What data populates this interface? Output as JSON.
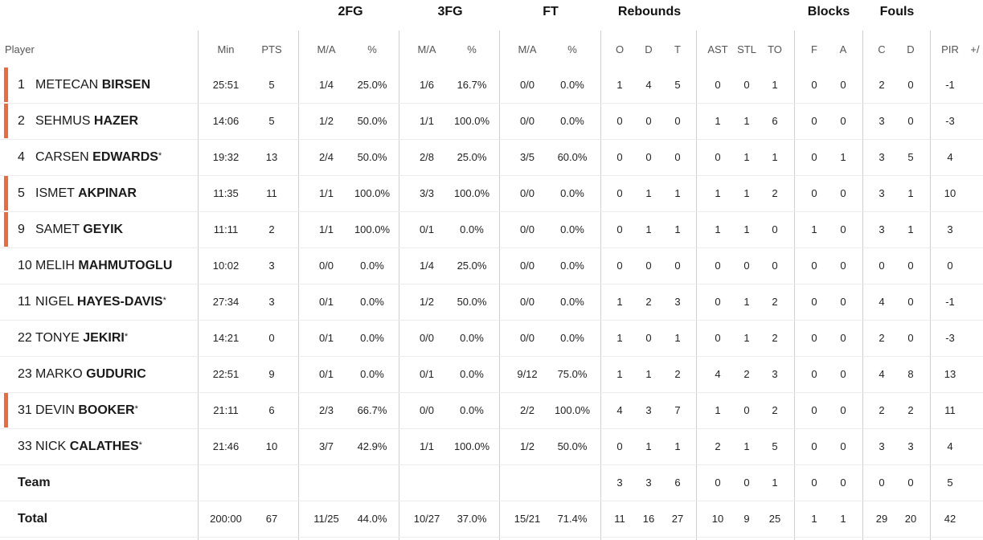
{
  "groups": {
    "fg2": "2FG",
    "fg3": "3FG",
    "ft": "FT",
    "rebounds": "Rebounds",
    "blocks": "Blocks",
    "fouls": "Fouls"
  },
  "headers": {
    "player": "Player",
    "min": "Min",
    "pts": "PTS",
    "fg2_ma": "M/A",
    "fg2_pct": "%",
    "fg3_ma": "M/A",
    "fg3_pct": "%",
    "ft_ma": "M/A",
    "ft_pct": "%",
    "reb_o": "O",
    "reb_d": "D",
    "reb_t": "T",
    "ast": "AST",
    "stl": "STL",
    "to": "TO",
    "blk_f": "F",
    "blk_a": "A",
    "foul_c": "C",
    "foul_d": "D",
    "pir": "PIR",
    "pm": "+/"
  },
  "colors": {
    "starter_accent": "#ee6a3a"
  },
  "players": [
    {
      "num": "1",
      "first": "METECAN",
      "last": "BIRSEN",
      "star": "",
      "starter": true,
      "min": "25:51",
      "pts": "5",
      "fg2": "1/4",
      "fg2p": "25.0%",
      "fg3": "1/6",
      "fg3p": "16.7%",
      "ft": "0/0",
      "ftp": "0.0%",
      "o": "1",
      "d": "4",
      "t": "5",
      "ast": "0",
      "stl": "0",
      "to": "1",
      "bf": "0",
      "ba": "0",
      "fc": "2",
      "fd": "0",
      "pir": "-1"
    },
    {
      "num": "2",
      "first": "SEHMUS",
      "last": "HAZER",
      "star": "",
      "starter": true,
      "min": "14:06",
      "pts": "5",
      "fg2": "1/2",
      "fg2p": "50.0%",
      "fg3": "1/1",
      "fg3p": "100.0%",
      "ft": "0/0",
      "ftp": "0.0%",
      "o": "0",
      "d": "0",
      "t": "0",
      "ast": "1",
      "stl": "1",
      "to": "6",
      "bf": "0",
      "ba": "0",
      "fc": "3",
      "fd": "0",
      "pir": "-3"
    },
    {
      "num": "4",
      "first": "CARSEN",
      "last": "EDWARDS",
      "star": "*",
      "starter": false,
      "min": "19:32",
      "pts": "13",
      "fg2": "2/4",
      "fg2p": "50.0%",
      "fg3": "2/8",
      "fg3p": "25.0%",
      "ft": "3/5",
      "ftp": "60.0%",
      "o": "0",
      "d": "0",
      "t": "0",
      "ast": "0",
      "stl": "1",
      "to": "1",
      "bf": "0",
      "ba": "1",
      "fc": "3",
      "fd": "5",
      "pir": "4"
    },
    {
      "num": "5",
      "first": "ISMET",
      "last": "AKPINAR",
      "star": "",
      "starter": true,
      "min": "11:35",
      "pts": "11",
      "fg2": "1/1",
      "fg2p": "100.0%",
      "fg3": "3/3",
      "fg3p": "100.0%",
      "ft": "0/0",
      "ftp": "0.0%",
      "o": "0",
      "d": "1",
      "t": "1",
      "ast": "1",
      "stl": "1",
      "to": "2",
      "bf": "0",
      "ba": "0",
      "fc": "3",
      "fd": "1",
      "pir": "10"
    },
    {
      "num": "9",
      "first": "SAMET",
      "last": "GEYIK",
      "star": "",
      "starter": true,
      "min": "11:11",
      "pts": "2",
      "fg2": "1/1",
      "fg2p": "100.0%",
      "fg3": "0/1",
      "fg3p": "0.0%",
      "ft": "0/0",
      "ftp": "0.0%",
      "o": "0",
      "d": "1",
      "t": "1",
      "ast": "1",
      "stl": "1",
      "to": "0",
      "bf": "1",
      "ba": "0",
      "fc": "3",
      "fd": "1",
      "pir": "3"
    },
    {
      "num": "10",
      "first": "MELIH",
      "last": "MAHMUTOGLU",
      "star": "",
      "starter": false,
      "min": "10:02",
      "pts": "3",
      "fg2": "0/0",
      "fg2p": "0.0%",
      "fg3": "1/4",
      "fg3p": "25.0%",
      "ft": "0/0",
      "ftp": "0.0%",
      "o": "0",
      "d": "0",
      "t": "0",
      "ast": "0",
      "stl": "0",
      "to": "0",
      "bf": "0",
      "ba": "0",
      "fc": "0",
      "fd": "0",
      "pir": "0"
    },
    {
      "num": "11",
      "first": "NIGEL",
      "last": "HAYES-DAVIS",
      "star": "*",
      "starter": false,
      "min": "27:34",
      "pts": "3",
      "fg2": "0/1",
      "fg2p": "0.0%",
      "fg3": "1/2",
      "fg3p": "50.0%",
      "ft": "0/0",
      "ftp": "0.0%",
      "o": "1",
      "d": "2",
      "t": "3",
      "ast": "0",
      "stl": "1",
      "to": "2",
      "bf": "0",
      "ba": "0",
      "fc": "4",
      "fd": "0",
      "pir": "-1"
    },
    {
      "num": "22",
      "first": "TONYE",
      "last": "JEKIRI",
      "star": "*",
      "starter": false,
      "min": "14:21",
      "pts": "0",
      "fg2": "0/1",
      "fg2p": "0.0%",
      "fg3": "0/0",
      "fg3p": "0.0%",
      "ft": "0/0",
      "ftp": "0.0%",
      "o": "1",
      "d": "0",
      "t": "1",
      "ast": "0",
      "stl": "1",
      "to": "2",
      "bf": "0",
      "ba": "0",
      "fc": "2",
      "fd": "0",
      "pir": "-3"
    },
    {
      "num": "23",
      "first": "MARKO",
      "last": "GUDURIC",
      "star": "",
      "starter": false,
      "min": "22:51",
      "pts": "9",
      "fg2": "0/1",
      "fg2p": "0.0%",
      "fg3": "0/1",
      "fg3p": "0.0%",
      "ft": "9/12",
      "ftp": "75.0%",
      "o": "1",
      "d": "1",
      "t": "2",
      "ast": "4",
      "stl": "2",
      "to": "3",
      "bf": "0",
      "ba": "0",
      "fc": "4",
      "fd": "8",
      "pir": "13"
    },
    {
      "num": "31",
      "first": "DEVIN",
      "last": "BOOKER",
      "star": "*",
      "starter": true,
      "min": "21:11",
      "pts": "6",
      "fg2": "2/3",
      "fg2p": "66.7%",
      "fg3": "0/0",
      "fg3p": "0.0%",
      "ft": "2/2",
      "ftp": "100.0%",
      "o": "4",
      "d": "3",
      "t": "7",
      "ast": "1",
      "stl": "0",
      "to": "2",
      "bf": "0",
      "ba": "0",
      "fc": "2",
      "fd": "2",
      "pir": "11"
    },
    {
      "num": "33",
      "first": "NICK",
      "last": "CALATHES",
      "star": "*",
      "starter": false,
      "min": "21:46",
      "pts": "10",
      "fg2": "3/7",
      "fg2p": "42.9%",
      "fg3": "1/1",
      "fg3p": "100.0%",
      "ft": "1/2",
      "ftp": "50.0%",
      "o": "0",
      "d": "1",
      "t": "1",
      "ast": "2",
      "stl": "1",
      "to": "5",
      "bf": "0",
      "ba": "0",
      "fc": "3",
      "fd": "3",
      "pir": "4"
    }
  ],
  "team": {
    "label": "Team",
    "min": "",
    "pts": "",
    "fg2": "",
    "fg2p": "",
    "fg3": "",
    "fg3p": "",
    "ft": "",
    "ftp": "",
    "o": "3",
    "d": "3",
    "t": "6",
    "ast": "0",
    "stl": "0",
    "to": "1",
    "bf": "0",
    "ba": "0",
    "fc": "0",
    "fd": "0",
    "pir": "5"
  },
  "total": {
    "label": "Total",
    "min": "200:00",
    "pts": "67",
    "fg2": "11/25",
    "fg2p": "44.0%",
    "fg3": "10/27",
    "fg3p": "37.0%",
    "ft": "15/21",
    "ftp": "71.4%",
    "o": "11",
    "d": "16",
    "t": "27",
    "ast": "10",
    "stl": "9",
    "to": "25",
    "bf": "1",
    "ba": "1",
    "fc": "29",
    "fd": "20",
    "pir": "42"
  }
}
